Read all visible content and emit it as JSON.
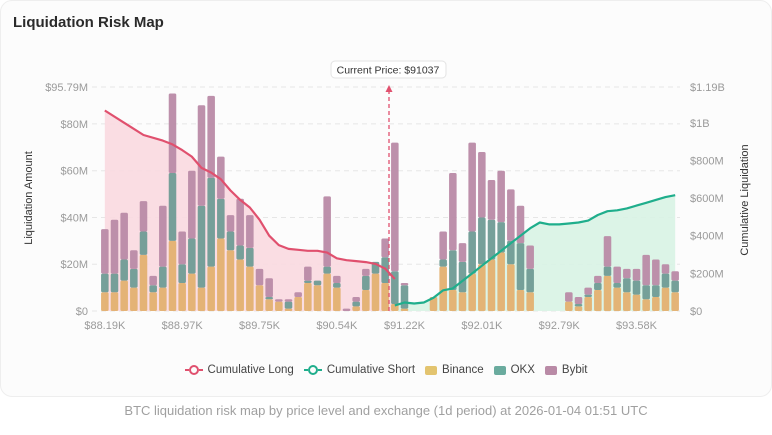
{
  "title": "Liquidation Risk Map",
  "current_price_label": "Current Price: $91037",
  "caption": "BTC liquidation risk map by price level and exchange (1d period) at 2026-01-04 01:51 UTC",
  "legend": [
    {
      "label": "Cumulative Long",
      "color": "#e0506e",
      "kind": "line"
    },
    {
      "label": "Cumulative Short",
      "color": "#1fae8c",
      "kind": "line"
    },
    {
      "label": "Binance",
      "color": "#e3c46f",
      "kind": "bar"
    },
    {
      "label": "OKX",
      "color": "#6aab9e",
      "kind": "bar"
    },
    {
      "label": "Bybit",
      "color": "#b98aa6",
      "kind": "bar"
    }
  ],
  "chart_data": {
    "type": "bar",
    "title": "Liquidation Risk Map",
    "xlabel": "",
    "ylabel": "Liquidation Amount",
    "y2label": "Cumulative Liquidation",
    "ylim": [
      0,
      95.79
    ],
    "y2lim": [
      0,
      1190
    ],
    "yticks": [
      "$0",
      "$20M",
      "$40M",
      "$60M",
      "$80M",
      "$95.79M"
    ],
    "ytick_values": [
      0,
      20,
      40,
      60,
      80,
      95.79
    ],
    "y2ticks": [
      "$0",
      "$200M",
      "$400M",
      "$600M",
      "$800M",
      "$1B",
      "$1.19B"
    ],
    "y2tick_values": [
      0,
      200,
      400,
      600,
      800,
      1000,
      1190
    ],
    "xticks": [
      "$88.19K",
      "$88.97K",
      "$89.75K",
      "$90.54K",
      "$91.22K",
      "$92.01K",
      "$92.79K",
      "$93.58K"
    ],
    "xtick_index": [
      0,
      8,
      16,
      24,
      31,
      39,
      47,
      55
    ],
    "current_price": 91037,
    "current_price_index": 29.5,
    "long_color_fill": "#f9d9e0",
    "short_color_fill": "#d8f3e4",
    "series": [
      {
        "name": "Binance",
        "color": "#e3b070",
        "values": [
          8,
          8,
          13,
          10,
          24,
          8,
          10,
          30,
          12,
          16,
          10,
          19,
          31,
          26,
          22,
          19,
          11,
          5,
          4,
          1,
          6,
          12,
          11,
          16,
          10,
          0,
          2,
          9,
          16,
          12,
          3,
          1,
          0,
          0,
          6,
          19,
          9,
          8,
          16,
          20,
          22,
          25,
          20,
          9,
          8,
          0,
          0,
          0,
          4,
          2,
          6,
          9,
          15,
          10,
          8,
          7,
          5,
          6,
          10,
          8
        ]
      },
      {
        "name": "OKX",
        "color": "#6f9b95",
        "values": [
          8,
          8,
          9,
          8,
          10,
          3,
          9,
          29,
          8,
          15,
          35,
          38,
          17,
          8,
          6,
          8,
          0,
          1,
          0,
          3,
          0,
          1,
          2,
          3,
          2,
          0,
          2,
          6,
          5,
          11,
          14,
          10,
          0,
          0,
          0,
          3,
          17,
          13,
          18,
          20,
          17,
          13,
          10,
          20,
          10,
          0,
          0,
          0,
          0,
          1,
          1,
          3,
          4,
          2,
          6,
          6,
          6,
          5,
          6,
          5
        ]
      },
      {
        "name": "Bybit",
        "color": "#b98aa6",
        "values": [
          19,
          23,
          20,
          8,
          13,
          4,
          26,
          34,
          14,
          29,
          43,
          35,
          18,
          7,
          20,
          14,
          7,
          8,
          1,
          1,
          2,
          6,
          0,
          30,
          3,
          1,
          2,
          3,
          0,
          8,
          55,
          1,
          0,
          0,
          0,
          12,
          33,
          8,
          38,
          28,
          17,
          22,
          22,
          16,
          10,
          0,
          0,
          0,
          4,
          3,
          3,
          3,
          13,
          7,
          4,
          5,
          13,
          11,
          4,
          4
        ]
      }
    ],
    "cumulative_long": [
      1065,
      1020,
      975,
      935,
      905,
      870,
      855,
      820,
      760,
      740,
      700,
      645,
      590,
      545,
      505,
      485,
      450,
      420,
      405,
      385,
      375,
      368,
      362,
      352,
      340,
      325,
      320,
      310,
      300,
      290,
      280,
      265,
      250,
      240,
      225,
      215,
      195,
      175,
      160,
      140,
      120,
      100,
      80,
      65,
      55,
      48,
      45,
      42
    ],
    "cumulative_short": [
      50,
      55,
      60,
      62,
      65,
      70,
      75,
      85,
      100,
      130,
      160,
      190,
      210,
      240,
      270,
      300,
      330,
      360,
      400,
      430,
      460,
      470,
      478,
      480,
      482,
      485,
      488,
      495,
      502,
      510,
      520,
      545,
      570,
      585,
      595,
      600,
      605,
      620,
      640,
      655,
      670,
      685,
      700,
      720,
      735,
      750,
      760,
      770,
      775,
      780,
      790,
      805,
      820,
      835,
      845,
      850
    ],
    "cumulative_long_points": [
      [
        0,
        1065
      ],
      [
        2,
        1000
      ],
      [
        4,
        935
      ],
      [
        6,
        905
      ],
      [
        7,
        885
      ],
      [
        8,
        855
      ],
      [
        9,
        820
      ],
      [
        10,
        760
      ],
      [
        11,
        735
      ],
      [
        12,
        700
      ],
      [
        13,
        640
      ],
      [
        14,
        590
      ],
      [
        15,
        550
      ],
      [
        16,
        485
      ],
      [
        17,
        400
      ],
      [
        18,
        350
      ],
      [
        19,
        330
      ],
      [
        20,
        325
      ],
      [
        21,
        320
      ],
      [
        22,
        320
      ],
      [
        23,
        310
      ],
      [
        24,
        280
      ],
      [
        25,
        270
      ],
      [
        26,
        265
      ],
      [
        27,
        260
      ],
      [
        28,
        250
      ],
      [
        29,
        225
      ],
      [
        30,
        170
      ]
    ],
    "cumulative_short_points": [
      [
        30,
        30
      ],
      [
        31,
        45
      ],
      [
        32,
        40
      ],
      [
        33,
        45
      ],
      [
        34,
        70
      ],
      [
        35,
        110
      ],
      [
        36,
        120
      ],
      [
        37,
        160
      ],
      [
        38,
        200
      ],
      [
        39,
        240
      ],
      [
        40,
        280
      ],
      [
        41,
        320
      ],
      [
        42,
        360
      ],
      [
        43,
        400
      ],
      [
        44,
        440
      ],
      [
        45,
        470
      ],
      [
        46,
        460
      ],
      [
        47,
        460
      ],
      [
        48,
        465
      ],
      [
        49,
        470
      ],
      [
        50,
        480
      ],
      [
        51,
        510
      ],
      [
        52,
        530
      ],
      [
        53,
        535
      ],
      [
        54,
        545
      ],
      [
        55,
        560
      ],
      [
        56,
        575
      ],
      [
        57,
        590
      ],
      [
        58,
        605
      ],
      [
        59,
        615
      ]
    ]
  }
}
